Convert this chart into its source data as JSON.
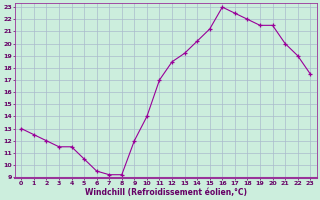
{
  "x": [
    0,
    1,
    2,
    3,
    4,
    5,
    6,
    7,
    8,
    9,
    10,
    11,
    12,
    13,
    14,
    15,
    16,
    17,
    18,
    19,
    20,
    21,
    22,
    23
  ],
  "y": [
    13.0,
    12.5,
    12.0,
    11.5,
    11.5,
    10.5,
    9.5,
    9.2,
    9.2,
    12.0,
    14.0,
    17.0,
    18.5,
    19.2,
    20.2,
    21.2,
    23.0,
    22.5,
    22.0,
    21.5,
    21.5,
    20.0,
    19.0,
    17.5
  ],
  "line_color": "#990099",
  "marker": "+",
  "bg_color": "#cceedd",
  "grid_color": "#aabbcc",
  "xlabel": "Windchill (Refroidissement éolien,°C)",
  "xlabel_color": "#660066",
  "tick_color": "#660066",
  "ylim": [
    9,
    23
  ],
  "xlim": [
    -0.5,
    23.5
  ],
  "yticks": [
    9,
    10,
    11,
    12,
    13,
    14,
    15,
    16,
    17,
    18,
    19,
    20,
    21,
    22,
    23
  ],
  "xticks": [
    0,
    1,
    2,
    3,
    4,
    5,
    6,
    7,
    8,
    9,
    10,
    11,
    12,
    13,
    14,
    15,
    16,
    17,
    18,
    19,
    20,
    21,
    22,
    23
  ],
  "border_color": "#993399",
  "title_bg": "#993399",
  "linewidth": 0.8,
  "markersize": 3.0
}
